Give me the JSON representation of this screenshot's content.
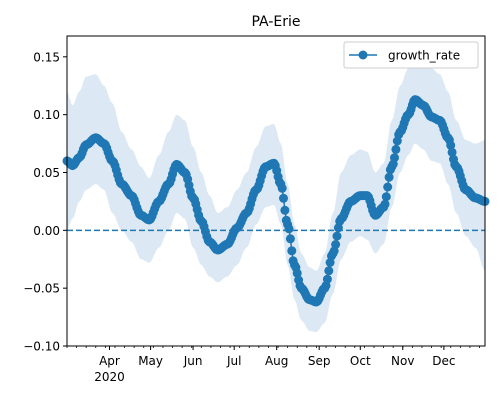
{
  "chart_data": {
    "type": "line",
    "title": "PA-Erie",
    "xlabel": "",
    "ylabel": "",
    "x_range": [
      "2020-03-01",
      "2020-12-31"
    ],
    "ylim": [
      -0.1,
      0.168
    ],
    "grid": false,
    "legend_position": "top-right",
    "y_ticks": [
      {
        "value": -0.1,
        "label": "−0.10"
      },
      {
        "value": -0.05,
        "label": "−0.05"
      },
      {
        "value": 0.0,
        "label": "0.00"
      },
      {
        "value": 0.05,
        "label": "0.05"
      },
      {
        "value": 0.1,
        "label": "0.10"
      },
      {
        "value": 0.15,
        "label": "0.15"
      }
    ],
    "x_ticks": [
      {
        "date": "2020-04-01",
        "label": "Apr",
        "sublabel": "2020"
      },
      {
        "date": "2020-05-01",
        "label": "May"
      },
      {
        "date": "2020-06-01",
        "label": "Jun"
      },
      {
        "date": "2020-07-01",
        "label": "Jul"
      },
      {
        "date": "2020-08-01",
        "label": "Aug"
      },
      {
        "date": "2020-09-01",
        "label": "Sep"
      },
      {
        "date": "2020-10-01",
        "label": "Oct"
      },
      {
        "date": "2020-11-01",
        "label": "Nov"
      },
      {
        "date": "2020-12-01",
        "label": "Dec"
      }
    ],
    "reference_line": {
      "y": 0.0,
      "style": "dashed",
      "color": "#1f77b4"
    },
    "series": [
      {
        "name": "growth_rate",
        "color": "#1f77b4",
        "band_color": "#dce9f5",
        "marker": "circle",
        "keypoints": [
          {
            "date": "2020-03-01",
            "y": 0.06,
            "lo": 0.0,
            "hi": 0.12
          },
          {
            "date": "2020-03-05",
            "y": 0.056,
            "lo": 0.01,
            "hi": 0.108
          },
          {
            "date": "2020-03-10",
            "y": 0.063,
            "lo": 0.025,
            "hi": 0.12
          },
          {
            "date": "2020-03-15",
            "y": 0.074,
            "lo": 0.035,
            "hi": 0.133
          },
          {
            "date": "2020-03-22",
            "y": 0.08,
            "lo": 0.04,
            "hi": 0.135
          },
          {
            "date": "2020-03-28",
            "y": 0.075,
            "lo": 0.035,
            "hi": 0.125
          },
          {
            "date": "2020-04-03",
            "y": 0.06,
            "lo": 0.015,
            "hi": 0.11
          },
          {
            "date": "2020-04-10",
            "y": 0.04,
            "lo": 0.0,
            "hi": 0.085
          },
          {
            "date": "2020-04-17",
            "y": 0.03,
            "lo": -0.01,
            "hi": 0.07
          },
          {
            "date": "2020-04-24",
            "y": 0.013,
            "lo": -0.025,
            "hi": 0.055
          },
          {
            "date": "2020-04-30",
            "y": 0.009,
            "lo": -0.028,
            "hi": 0.045
          },
          {
            "date": "2020-05-07",
            "y": 0.025,
            "lo": -0.015,
            "hi": 0.065
          },
          {
            "date": "2020-05-14",
            "y": 0.04,
            "lo": 0.0,
            "hi": 0.085
          },
          {
            "date": "2020-05-20",
            "y": 0.057,
            "lo": 0.015,
            "hi": 0.1
          },
          {
            "date": "2020-05-26",
            "y": 0.05,
            "lo": 0.01,
            "hi": 0.095
          },
          {
            "date": "2020-06-01",
            "y": 0.028,
            "lo": -0.015,
            "hi": 0.072
          },
          {
            "date": "2020-06-07",
            "y": 0.008,
            "lo": -0.03,
            "hi": 0.05
          },
          {
            "date": "2020-06-13",
            "y": -0.01,
            "lo": -0.04,
            "hi": 0.03
          },
          {
            "date": "2020-06-19",
            "y": -0.017,
            "lo": -0.045,
            "hi": 0.015
          },
          {
            "date": "2020-06-26",
            "y": -0.012,
            "lo": -0.04,
            "hi": 0.02
          },
          {
            "date": "2020-07-03",
            "y": 0.002,
            "lo": -0.03,
            "hi": 0.035
          },
          {
            "date": "2020-07-10",
            "y": 0.015,
            "lo": -0.015,
            "hi": 0.05
          },
          {
            "date": "2020-07-17",
            "y": 0.035,
            "lo": 0.005,
            "hi": 0.072
          },
          {
            "date": "2020-07-24",
            "y": 0.055,
            "lo": 0.02,
            "hi": 0.09
          },
          {
            "date": "2020-07-30",
            "y": 0.058,
            "lo": 0.022,
            "hi": 0.092
          },
          {
            "date": "2020-08-04",
            "y": 0.04,
            "lo": 0.005,
            "hi": 0.075
          },
          {
            "date": "2020-08-09",
            "y": 0.005,
            "lo": -0.03,
            "hi": 0.04
          },
          {
            "date": "2020-08-14",
            "y": -0.03,
            "lo": -0.06,
            "hi": 0.005
          },
          {
            "date": "2020-08-19",
            "y": -0.05,
            "lo": -0.078,
            "hi": -0.02
          },
          {
            "date": "2020-08-25",
            "y": -0.06,
            "lo": -0.087,
            "hi": -0.032
          },
          {
            "date": "2020-08-30",
            "y": -0.062,
            "lo": -0.088,
            "hi": -0.035
          },
          {
            "date": "2020-09-05",
            "y": -0.05,
            "lo": -0.08,
            "hi": -0.02
          },
          {
            "date": "2020-09-11",
            "y": -0.02,
            "lo": -0.055,
            "hi": 0.015
          },
          {
            "date": "2020-09-17",
            "y": 0.01,
            "lo": -0.025,
            "hi": 0.05
          },
          {
            "date": "2020-09-24",
            "y": 0.025,
            "lo": -0.01,
            "hi": 0.065
          },
          {
            "date": "2020-10-01",
            "y": 0.03,
            "lo": -0.005,
            "hi": 0.07
          },
          {
            "date": "2020-10-06",
            "y": 0.03,
            "lo": -0.008,
            "hi": 0.068
          },
          {
            "date": "2020-10-12",
            "y": 0.013,
            "lo": -0.02,
            "hi": 0.05
          },
          {
            "date": "2020-10-18",
            "y": 0.02,
            "lo": -0.012,
            "hi": 0.058
          },
          {
            "date": "2020-10-24",
            "y": 0.055,
            "lo": 0.02,
            "hi": 0.095
          },
          {
            "date": "2020-10-30",
            "y": 0.085,
            "lo": 0.05,
            "hi": 0.125
          },
          {
            "date": "2020-11-05",
            "y": 0.1,
            "lo": 0.065,
            "hi": 0.14
          },
          {
            "date": "2020-11-10",
            "y": 0.113,
            "lo": 0.075,
            "hi": 0.15
          },
          {
            "date": "2020-11-16",
            "y": 0.108,
            "lo": 0.07,
            "hi": 0.148
          },
          {
            "date": "2020-11-22",
            "y": 0.098,
            "lo": 0.06,
            "hi": 0.14
          },
          {
            "date": "2020-11-28",
            "y": 0.095,
            "lo": 0.058,
            "hi": 0.135
          },
          {
            "date": "2020-12-04",
            "y": 0.08,
            "lo": 0.04,
            "hi": 0.12
          },
          {
            "date": "2020-12-10",
            "y": 0.055,
            "lo": 0.015,
            "hi": 0.095
          },
          {
            "date": "2020-12-17",
            "y": 0.035,
            "lo": -0.005,
            "hi": 0.078
          },
          {
            "date": "2020-12-24",
            "y": 0.028,
            "lo": -0.015,
            "hi": 0.075
          },
          {
            "date": "2020-12-31",
            "y": 0.025,
            "lo": -0.035,
            "hi": 0.078
          }
        ]
      }
    ]
  }
}
